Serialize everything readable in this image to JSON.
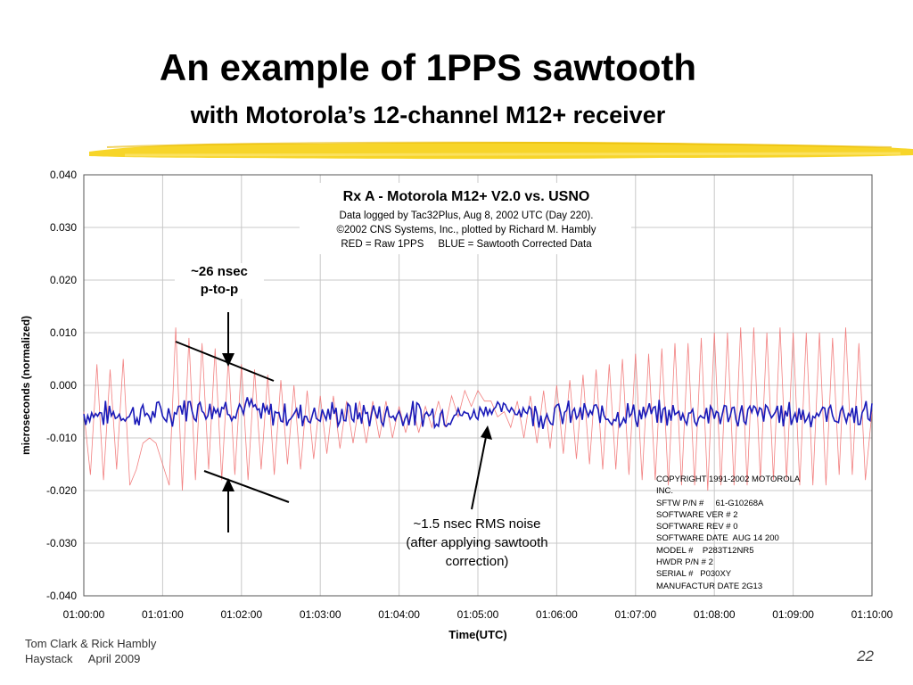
{
  "slide": {
    "title": "An example of 1PPS sawtooth",
    "subtitle": "with Motorola’s 12-channel  M12+ receiver",
    "footer_authors": "Tom Clark & Rick Hambly",
    "footer_venue": "Haystack     April 2009",
    "page_number": "22",
    "highlight_color": "#f7d31e"
  },
  "annotations": {
    "ptp": [
      "~26 nsec",
      "p-to-p"
    ],
    "rms": [
      "~1.5 nsec RMS noise",
      "(after applying sawtooth",
      "correction)"
    ]
  },
  "copyright_box": [
    "COPYRIGHT 1991-2002 MOTOROLA",
    "INC.",
    "SFTW P/N #     61-G10268A",
    "SOFTWARE VER # 2",
    "SOFTWARE REV # 0",
    "SOFTWARE DATE  AUG 14 200",
    "MODEL #    P283T12NR5",
    "HWDR P/N # 2",
    "SERIAL #   P030XY",
    "MANUFACTUR DATE 2G13"
  ],
  "chart_data": {
    "type": "line",
    "title": "Rx A - Motorola M12+ V2.0 vs. USNO",
    "subtitle_lines": [
      "Data logged by Tac32Plus, Aug 8, 2002 UTC (Day 220).",
      "©2002 CNS Systems, Inc., plotted by Richard M. Hambly",
      "RED = Raw 1PPS     BLUE = Sawtooth Corrected Data"
    ],
    "xlabel": "Time(UTC)",
    "ylabel": "microseconds (normalized)",
    "xlim_seconds": [
      0,
      600
    ],
    "ylim": [
      -0.04,
      0.04
    ],
    "x_ticks": [
      "01:00:00",
      "01:01:00",
      "01:02:00",
      "01:03:00",
      "01:04:00",
      "01:05:00",
      "01:06:00",
      "01:07:00",
      "01:08:00",
      "01:09:00",
      "01:10:00"
    ],
    "y_ticks": [
      "0.040",
      "0.030",
      "0.020",
      "0.010",
      "0.000",
      "-0.010",
      "-0.020",
      "-0.030",
      "-0.040"
    ],
    "grid": true,
    "series": [
      {
        "color": "#f06a6a",
        "description_points_sampled_every_5s": [
          [
            0,
            -0.005
          ],
          [
            5,
            -0.017
          ],
          [
            10,
            0.004
          ],
          [
            15,
            -0.018
          ],
          [
            20,
            0.003
          ],
          [
            25,
            -0.016
          ],
          [
            30,
            0.005
          ],
          [
            35,
            -0.019
          ],
          [
            40,
            -0.016
          ],
          [
            45,
            -0.011
          ],
          [
            50,
            -0.01
          ],
          [
            55,
            -0.011
          ],
          [
            60,
            -0.015
          ],
          [
            65,
            -0.019
          ],
          [
            70,
            0.011
          ],
          [
            75,
            -0.02
          ],
          [
            80,
            0.009
          ],
          [
            85,
            -0.018
          ],
          [
            90,
            0.008
          ],
          [
            95,
            -0.016
          ],
          [
            100,
            0.007
          ],
          [
            105,
            -0.018
          ],
          [
            110,
            0.005
          ],
          [
            115,
            -0.017
          ],
          [
            120,
            0.004
          ],
          [
            125,
            -0.018
          ],
          [
            130,
            0.003
          ],
          [
            135,
            -0.016
          ],
          [
            140,
            0.002
          ],
          [
            145,
            -0.017
          ],
          [
            150,
            0.001
          ],
          [
            155,
            -0.015
          ],
          [
            160,
            0.0
          ],
          [
            165,
            -0.016
          ],
          [
            170,
            -0.001
          ],
          [
            175,
            -0.014
          ],
          [
            180,
            -0.002
          ],
          [
            185,
            -0.013
          ],
          [
            190,
            -0.002
          ],
          [
            195,
            -0.012
          ],
          [
            200,
            -0.003
          ],
          [
            205,
            -0.011
          ],
          [
            210,
            -0.003
          ],
          [
            215,
            -0.011
          ],
          [
            220,
            -0.003
          ],
          [
            225,
            -0.01
          ],
          [
            230,
            -0.003
          ],
          [
            235,
            -0.01
          ],
          [
            240,
            -0.004
          ],
          [
            245,
            -0.009
          ],
          [
            250,
            -0.004
          ],
          [
            255,
            -0.009
          ],
          [
            260,
            -0.004
          ],
          [
            265,
            -0.008
          ],
          [
            270,
            -0.003
          ],
          [
            275,
            -0.008
          ],
          [
            280,
            -0.002
          ],
          [
            285,
            -0.006
          ],
          [
            290,
            -0.001
          ],
          [
            295,
            -0.004
          ],
          [
            300,
            -0.001
          ],
          [
            305,
            -0.003
          ],
          [
            310,
            -0.003
          ],
          [
            315,
            -0.006
          ],
          [
            320,
            -0.005
          ],
          [
            325,
            -0.008
          ],
          [
            330,
            -0.003
          ],
          [
            335,
            -0.01
          ],
          [
            340,
            -0.002
          ],
          [
            345,
            -0.011
          ],
          [
            350,
            -0.001
          ],
          [
            355,
            -0.012
          ],
          [
            360,
            0.0
          ],
          [
            365,
            -0.013
          ],
          [
            370,
            0.001
          ],
          [
            375,
            -0.014
          ],
          [
            380,
            0.002
          ],
          [
            385,
            -0.015
          ],
          [
            390,
            0.003
          ],
          [
            395,
            -0.016
          ],
          [
            400,
            0.004
          ],
          [
            405,
            -0.016
          ],
          [
            410,
            0.005
          ],
          [
            415,
            -0.017
          ],
          [
            420,
            0.006
          ],
          [
            425,
            -0.018
          ],
          [
            430,
            0.006
          ],
          [
            435,
            -0.018
          ],
          [
            440,
            0.007
          ],
          [
            445,
            -0.019
          ],
          [
            450,
            0.008
          ],
          [
            455,
            -0.019
          ],
          [
            460,
            0.008
          ],
          [
            465,
            -0.019
          ],
          [
            470,
            0.009
          ],
          [
            475,
            -0.02
          ],
          [
            480,
            0.01
          ],
          [
            485,
            -0.019
          ],
          [
            490,
            0.01
          ],
          [
            495,
            -0.019
          ],
          [
            500,
            0.011
          ],
          [
            505,
            -0.019
          ],
          [
            510,
            0.011
          ],
          [
            515,
            -0.018
          ],
          [
            520,
            0.01
          ],
          [
            525,
            -0.018
          ],
          [
            530,
            0.011
          ],
          [
            535,
            -0.018
          ],
          [
            540,
            0.01
          ],
          [
            545,
            -0.019
          ],
          [
            550,
            0.01
          ],
          [
            555,
            -0.019
          ],
          [
            560,
            0.01
          ],
          [
            565,
            -0.019
          ],
          [
            570,
            0.009
          ],
          [
            575,
            -0.017
          ],
          [
            580,
            0.011
          ],
          [
            585,
            -0.017
          ],
          [
            590,
            0.008
          ],
          [
            595,
            -0.018
          ],
          [
            600,
            -0.005
          ]
        ]
      },
      {
        "color": "#1a1ab8",
        "description": "sawtooth-corrected data, mean about -0.0055",
        "mean": -0.0055
      }
    ]
  }
}
